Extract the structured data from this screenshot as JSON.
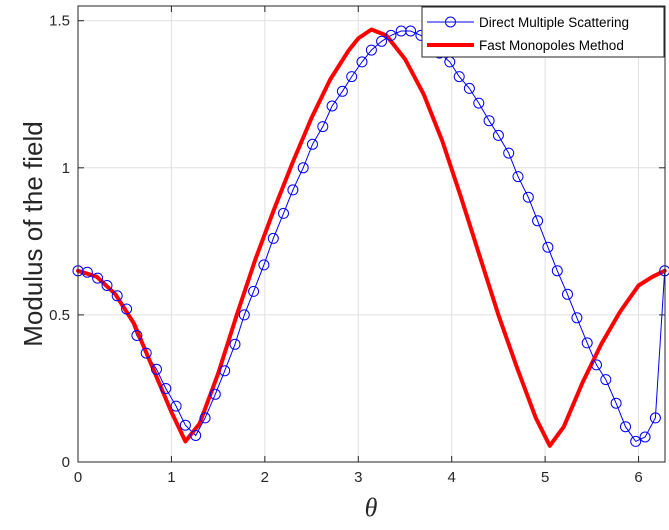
{
  "chart_data": {
    "type": "line",
    "title": "",
    "xlabel": "θ",
    "ylabel": "Modulus of the field",
    "xlim": [
      0,
      6.2832
    ],
    "ylim": [
      0,
      1.55
    ],
    "xticks": [
      0,
      1,
      2,
      3,
      4,
      5,
      6
    ],
    "yticks": [
      0,
      0.5,
      1,
      1.5
    ],
    "xtick_labels": [
      "0",
      "1",
      "2",
      "3",
      "4",
      "5",
      "6"
    ],
    "ytick_labels": [
      "0",
      "0.5",
      "1",
      "1.5"
    ],
    "grid": true,
    "legend_position": "top-right",
    "colors": {
      "direct": "#0000ff",
      "fmm": "#ff0000",
      "grid": "#e0e0e0",
      "axis": "#262626"
    },
    "series": [
      {
        "name": "Direct Multiple Scattering",
        "style": "line-circle",
        "color": "#0000ff",
        "x": [
          0.0,
          0.1,
          0.21,
          0.31,
          0.42,
          0.52,
          0.63,
          0.73,
          0.84,
          0.94,
          1.05,
          1.15,
          1.26,
          1.36,
          1.47,
          1.57,
          1.68,
          1.78,
          1.88,
          1.99,
          2.09,
          2.2,
          2.3,
          2.41,
          2.51,
          2.62,
          2.72,
          2.83,
          2.93,
          3.04,
          3.14,
          3.25,
          3.35,
          3.46,
          3.56,
          3.67,
          3.77,
          3.87,
          3.98,
          4.08,
          4.19,
          4.29,
          4.4,
          4.5,
          4.61,
          4.71,
          4.82,
          4.92,
          5.03,
          5.13,
          5.24,
          5.34,
          5.45,
          5.55,
          5.65,
          5.76,
          5.86,
          5.97,
          6.07,
          6.18,
          6.28
        ],
        "values": [
          0.65,
          0.645,
          0.625,
          0.6,
          0.565,
          0.52,
          0.43,
          0.37,
          0.315,
          0.25,
          0.19,
          0.125,
          0.09,
          0.15,
          0.23,
          0.31,
          0.4,
          0.5,
          0.58,
          0.67,
          0.76,
          0.845,
          0.925,
          1.0,
          1.08,
          1.14,
          1.21,
          1.26,
          1.31,
          1.36,
          1.4,
          1.43,
          1.45,
          1.465,
          1.465,
          1.45,
          1.42,
          1.39,
          1.36,
          1.31,
          1.27,
          1.22,
          1.16,
          1.11,
          1.05,
          0.97,
          0.9,
          0.82,
          0.73,
          0.65,
          0.57,
          0.49,
          0.405,
          0.33,
          0.28,
          0.2,
          0.12,
          0.07,
          0.085,
          0.15,
          0.65
        ]
      },
      {
        "name": "Fast Monopoles Method",
        "style": "line",
        "color": "#ff0000",
        "x": [
          0.0,
          0.2,
          0.4,
          0.6,
          0.8,
          1.0,
          1.15,
          1.3,
          1.5,
          1.7,
          1.9,
          2.1,
          2.3,
          2.5,
          2.7,
          2.9,
          3.0,
          3.14,
          3.3,
          3.5,
          3.7,
          3.9,
          4.1,
          4.3,
          4.5,
          4.7,
          4.9,
          5.05,
          5.2,
          5.4,
          5.6,
          5.8,
          6.0,
          6.15,
          6.28
        ],
        "values": [
          0.65,
          0.63,
          0.57,
          0.47,
          0.32,
          0.17,
          0.07,
          0.13,
          0.3,
          0.5,
          0.69,
          0.86,
          1.02,
          1.17,
          1.3,
          1.4,
          1.44,
          1.47,
          1.45,
          1.37,
          1.25,
          1.09,
          0.9,
          0.7,
          0.5,
          0.32,
          0.15,
          0.055,
          0.12,
          0.27,
          0.4,
          0.51,
          0.6,
          0.63,
          0.65
        ]
      }
    ]
  }
}
